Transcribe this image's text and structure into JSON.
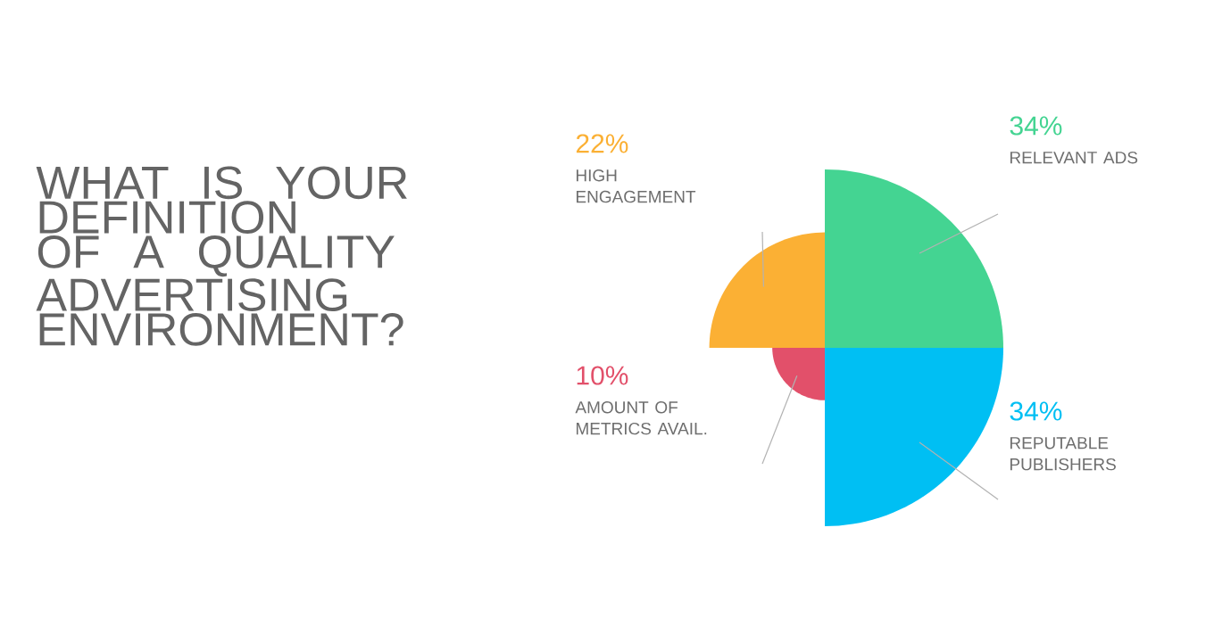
{
  "chart_data": {
    "type": "other",
    "title": "WHAT IS YOUR DEFINITION OF A QUALITY ADVERTISING ENVIRONMENT?",
    "categories": [
      "RELEVANT ADS",
      "REPUTABLE PUBLISHERS",
      "AMOUNT OF METRICS AVAIL.",
      "HIGH ENGAGEMENT"
    ],
    "values": [
      34,
      34,
      10,
      22
    ],
    "value_labels": [
      "34%",
      "34%",
      "10%",
      "22%"
    ],
    "colors": [
      "#44d492",
      "#00bff3",
      "#e2506a",
      "#fbb034"
    ]
  }
}
